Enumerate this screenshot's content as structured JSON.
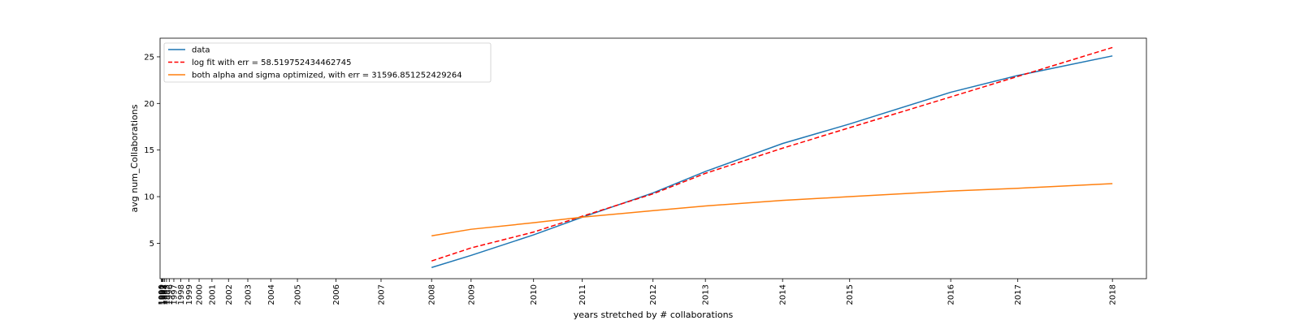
{
  "chart_data": {
    "type": "line",
    "title": "",
    "xlabel": "years stretched by # collaborations",
    "ylabel": "avg num_Collaborations",
    "x_ticks": [
      1990,
      1991,
      1992,
      1993,
      1994,
      1995,
      1996,
      1997,
      1998,
      1999,
      2000,
      2001,
      2002,
      2003,
      2004,
      2005,
      2006,
      2007,
      2008,
      2009,
      2010,
      2011,
      2012,
      2013,
      2014,
      2015,
      2016,
      2017,
      2018
    ],
    "x_tick_labels": [
      "1990",
      "1991",
      "1992",
      "1993",
      "1994",
      "1995",
      "1996",
      "1997",
      "1998",
      "1999",
      "2000",
      "2001",
      "2002",
      "2003",
      "2004",
      "2005",
      "2006",
      "2007",
      "2008",
      "2009",
      "2010",
      "2011",
      "2012",
      "2013",
      "2014",
      "2015",
      "2016",
      "2017",
      "2018"
    ],
    "x_tick_values_stretched": [
      0.0,
      0.04,
      0.1,
      0.2,
      0.35,
      0.55,
      0.85,
      1.35,
      2.1,
      3.0,
      4.1,
      5.5,
      7.3,
      9.4,
      11.9,
      14.8,
      19.0,
      23.9,
      29.4,
      33.7,
      40.5,
      45.8,
      53.5,
      59.2,
      67.6,
      74.9,
      85.9,
      93.2,
      103.5
    ],
    "ylim": [
      1.2,
      27.0
    ],
    "y_ticks": [
      5,
      10,
      15,
      20,
      25
    ],
    "xlim": [
      -0.15,
      107.2
    ],
    "legend": "upper-left",
    "series": [
      {
        "name": "data",
        "color": "#1f77b4",
        "dash": "solid",
        "x": [
          2008,
          2009,
          2010,
          2011,
          2012,
          2013,
          2014,
          2015,
          2016,
          2017,
          2018
        ],
        "y": [
          2.4,
          3.7,
          5.9,
          7.8,
          10.4,
          12.7,
          15.7,
          17.8,
          21.2,
          23.0,
          25.1
        ]
      },
      {
        "name": "log fit with err = 58.519752434462745",
        "color": "#ff0000",
        "dash": "dashed",
        "x": [
          2008,
          2009,
          2010,
          2011,
          2012,
          2013,
          2014,
          2015,
          2016,
          2017,
          2018
        ],
        "y": [
          3.1,
          4.5,
          6.2,
          7.9,
          10.3,
          12.5,
          15.2,
          17.4,
          20.7,
          22.9,
          26.0
        ]
      },
      {
        "name": "both alpha and sigma optimized, with err = 31596.851252429264",
        "color": "#ff7f0e",
        "dash": "solid",
        "x": [
          2008,
          2009,
          2010,
          2011,
          2012,
          2013,
          2014,
          2015,
          2016,
          2017,
          2018
        ],
        "y": [
          5.8,
          6.5,
          7.2,
          7.8,
          8.5,
          9.0,
          9.6,
          10.0,
          10.6,
          10.9,
          11.4
        ]
      }
    ]
  }
}
